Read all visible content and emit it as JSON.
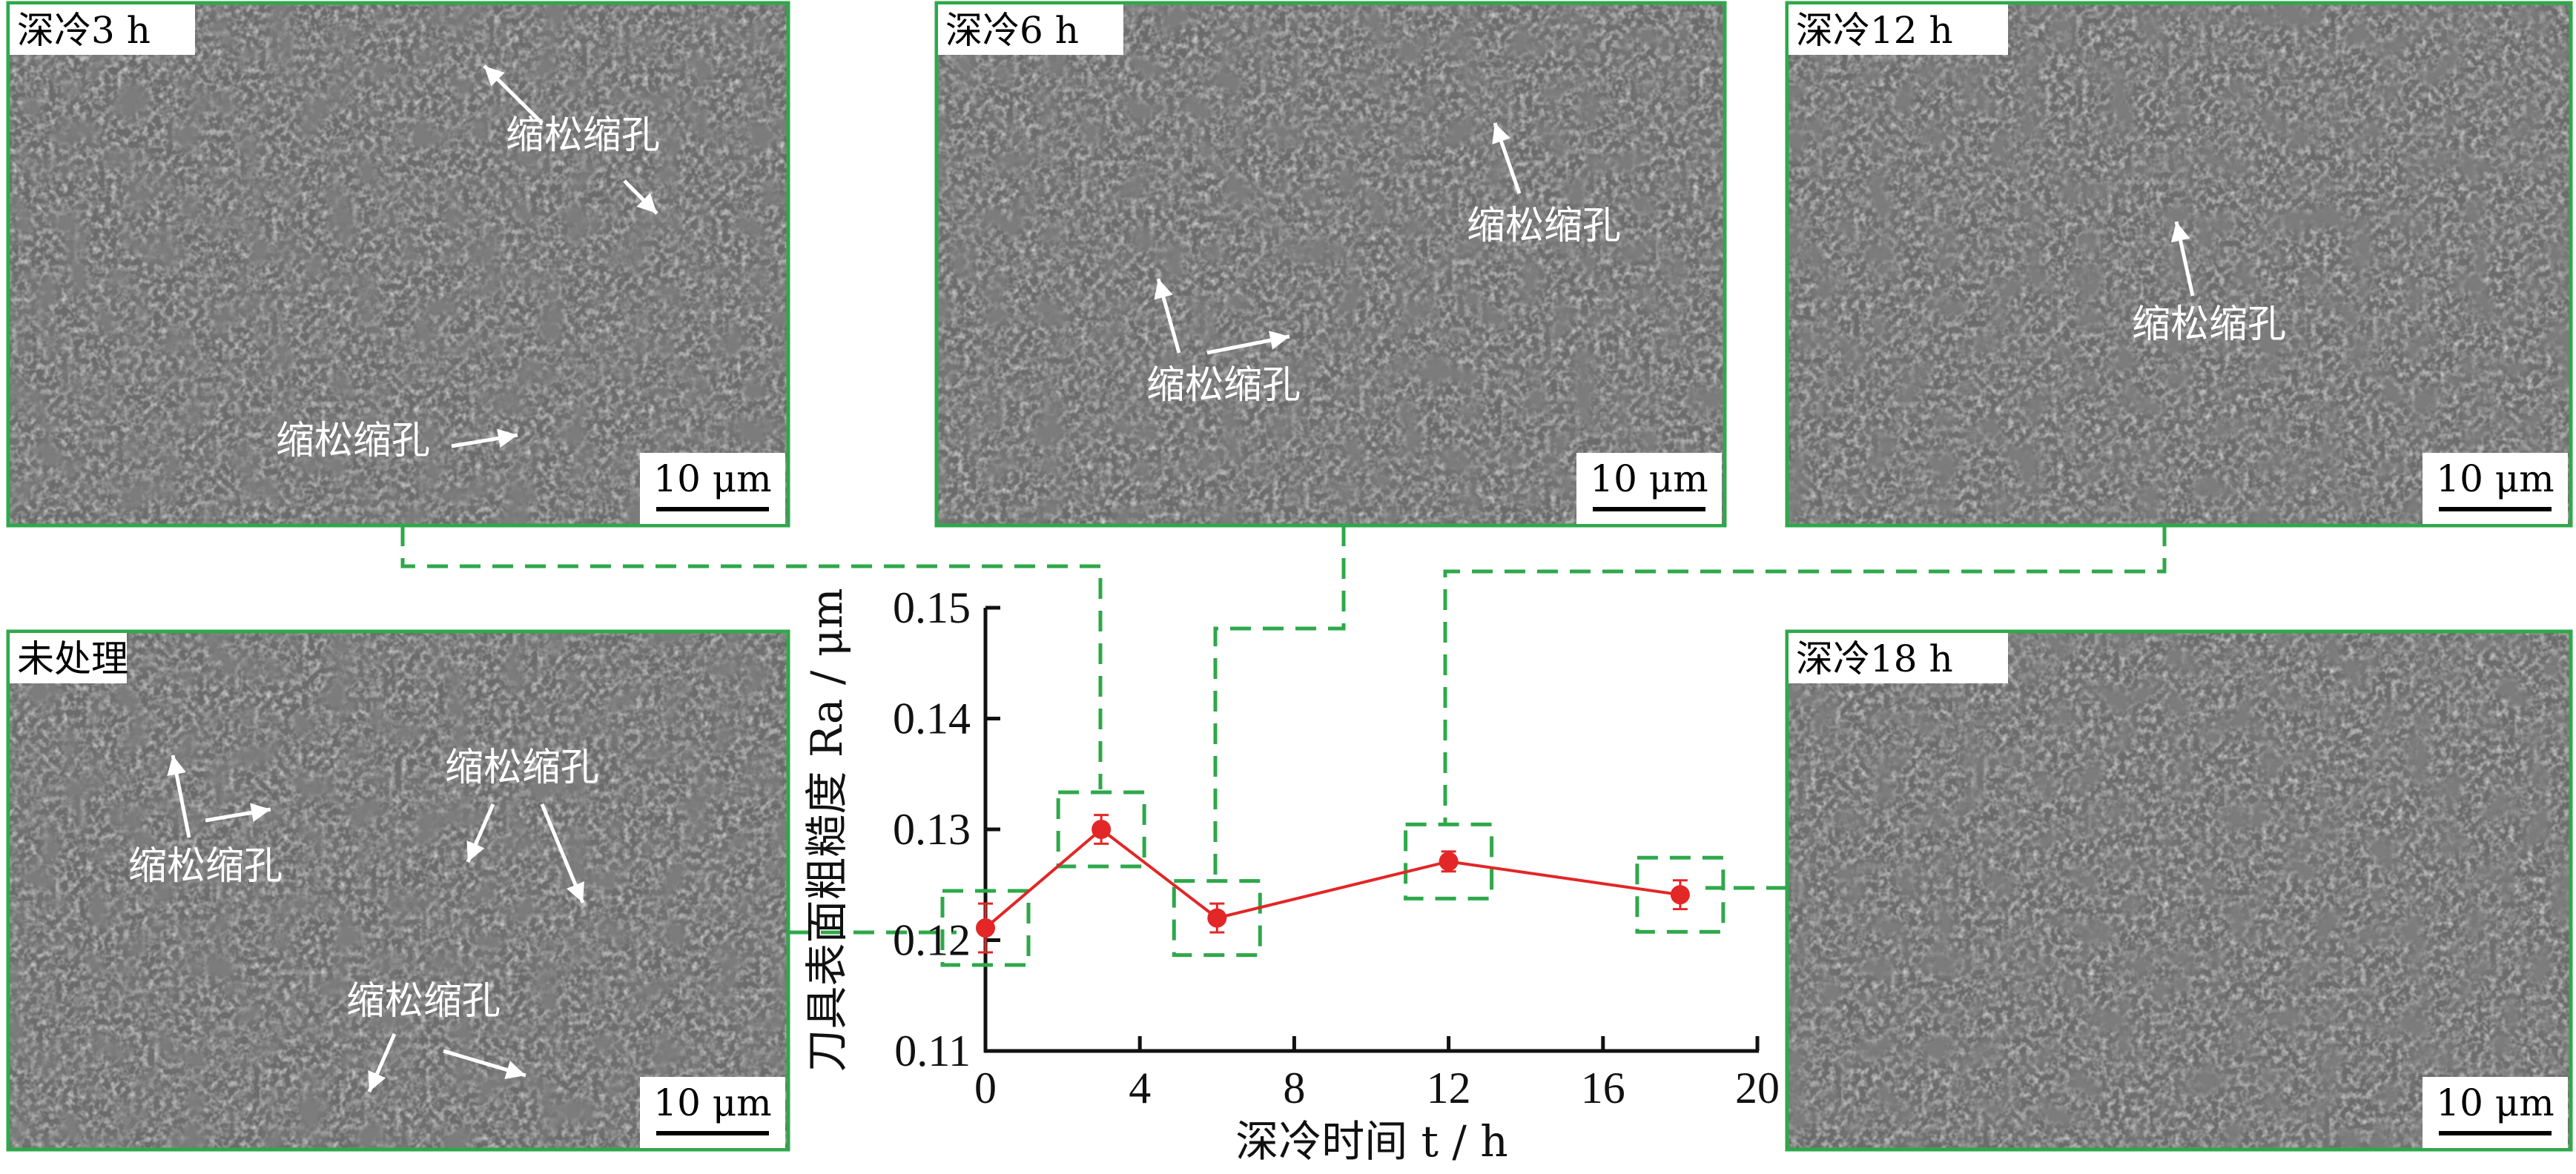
{
  "panels": {
    "h3": {
      "label": "深冷3 h",
      "annotations": [
        "缩松缩孔",
        "缩松缩孔"
      ],
      "scale_bar": "10 μm"
    },
    "h6": {
      "label": "深冷6 h",
      "annotations": [
        "缩松缩孔",
        "缩松缩孔"
      ],
      "scale_bar": "10 μm"
    },
    "h12": {
      "label": "深冷12 h",
      "annotations": [
        "缩松缩孔"
      ],
      "scale_bar": "10 μm"
    },
    "untreated": {
      "label": "未处理",
      "annotations": [
        "缩松缩孔",
        "缩松缩孔",
        "缩松缩孔"
      ],
      "scale_bar": "10 μm"
    },
    "h18": {
      "label": "深冷18 h",
      "scale_bar": "10 μm"
    }
  },
  "colors": {
    "frame": "#2ea84a",
    "series": "#e32626",
    "image": "#6b6b6b"
  },
  "chart_data": {
    "type": "line",
    "xlabel": "深冷时间 t / h",
    "ylabel": "刀具表面粗糙度 Ra / μm",
    "xlim": [
      0,
      20
    ],
    "ylim": [
      0.11,
      0.15
    ],
    "xticks": [
      "0",
      "4",
      "8",
      "12",
      "16",
      "20"
    ],
    "yticks": [
      "0.11",
      "0.12",
      "0.13",
      "0.14",
      "0.15"
    ],
    "grid": false,
    "x": [
      0,
      3,
      6,
      12,
      18
    ],
    "y": [
      0.1211,
      0.13,
      0.122,
      0.1271,
      0.1241
    ],
    "error": [
      0.0022,
      0.0013,
      0.0013,
      0.0009,
      0.0013
    ]
  }
}
